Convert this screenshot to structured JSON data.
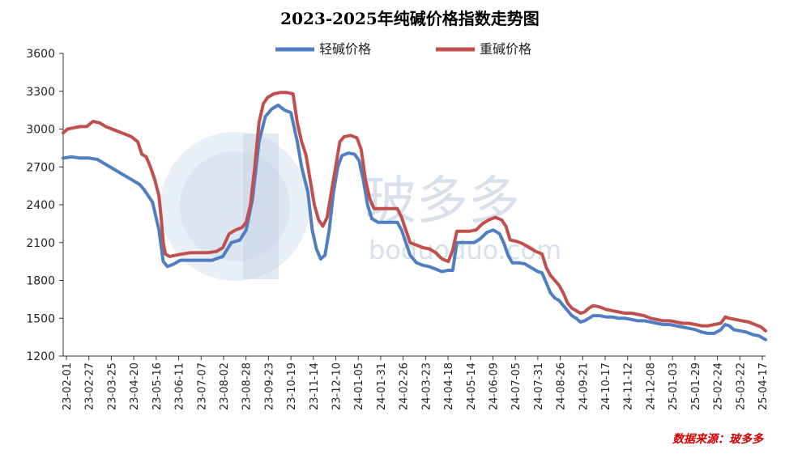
{
  "chart_data": {
    "type": "line",
    "title": "2023-2025年纯碱价格指数走势图",
    "source": "数据来源：玻多多",
    "watermark": {
      "brand": "玻多多",
      "site": "boduoduo.com"
    },
    "ylim": [
      1200,
      3600
    ],
    "yticks": [
      "1200",
      "1500",
      "1800",
      "2100",
      "2400",
      "2700",
      "3000",
      "3300",
      "3600"
    ],
    "x_ticks": [
      "23-02-01",
      "23-02-27",
      "23-03-25",
      "23-04-20",
      "23-05-16",
      "23-06-11",
      "23-07-07",
      "23-08-02",
      "23-08-28",
      "23-09-23",
      "23-10-19",
      "23-11-14",
      "23-12-10",
      "24-01-05",
      "24-01-31",
      "24-02-26",
      "24-03-23",
      "24-04-18",
      "24-05-14",
      "24-06-09",
      "24-07-05",
      "24-07-31",
      "24-08-26",
      "24-09-21",
      "24-10-17",
      "24-11-12",
      "24-12-08",
      "25-01-03",
      "25-01-29",
      "25-02-24",
      "25-03-22",
      "25-04-17"
    ],
    "legend_position": "top",
    "grid": false,
    "series": [
      {
        "name": "轻碱价格",
        "color": "#4f7fc2",
        "points": [
          [
            0,
            2770
          ],
          [
            4,
            2780
          ],
          [
            8,
            2770
          ],
          [
            12,
            2770
          ],
          [
            16,
            2760
          ],
          [
            20,
            2720
          ],
          [
            24,
            2680
          ],
          [
            28,
            2640
          ],
          [
            32,
            2600
          ],
          [
            36,
            2560
          ],
          [
            38,
            2520
          ],
          [
            42,
            2420
          ],
          [
            45,
            2200
          ],
          [
            47,
            1950
          ],
          [
            49,
            1910
          ],
          [
            52,
            1930
          ],
          [
            55,
            1960
          ],
          [
            60,
            1960
          ],
          [
            65,
            1960
          ],
          [
            70,
            1960
          ],
          [
            75,
            1990
          ],
          [
            79,
            2100
          ],
          [
            83,
            2120
          ],
          [
            86,
            2200
          ],
          [
            89,
            2450
          ],
          [
            92,
            2900
          ],
          [
            95,
            3100
          ],
          [
            98,
            3160
          ],
          [
            101,
            3190
          ],
          [
            104,
            3150
          ],
          [
            107,
            3130
          ],
          [
            110,
            2900
          ],
          [
            112,
            2700
          ],
          [
            115,
            2500
          ],
          [
            117,
            2200
          ],
          [
            119,
            2050
          ],
          [
            121,
            1970
          ],
          [
            123,
            2000
          ],
          [
            125,
            2200
          ],
          [
            127,
            2500
          ],
          [
            129,
            2700
          ],
          [
            131,
            2790
          ],
          [
            134,
            2810
          ],
          [
            137,
            2800
          ],
          [
            139,
            2750
          ],
          [
            141,
            2600
          ],
          [
            143,
            2400
          ],
          [
            145,
            2290
          ],
          [
            148,
            2260
          ],
          [
            151,
            2260
          ],
          [
            154,
            2260
          ],
          [
            157,
            2260
          ],
          [
            159,
            2200
          ],
          [
            161,
            2100
          ],
          [
            163,
            2000
          ],
          [
            166,
            1940
          ],
          [
            169,
            1920
          ],
          [
            172,
            1910
          ],
          [
            175,
            1890
          ],
          [
            178,
            1870
          ],
          [
            181,
            1880
          ],
          [
            183,
            1880
          ],
          [
            185,
            2100
          ],
          [
            187,
            2100
          ],
          [
            190,
            2100
          ],
          [
            193,
            2100
          ],
          [
            196,
            2130
          ],
          [
            199,
            2180
          ],
          [
            202,
            2200
          ],
          [
            205,
            2170
          ],
          [
            207,
            2100
          ],
          [
            209,
            2000
          ],
          [
            211,
            1940
          ],
          [
            214,
            1940
          ],
          [
            217,
            1930
          ],
          [
            220,
            1900
          ],
          [
            223,
            1870
          ],
          [
            225,
            1860
          ],
          [
            227,
            1780
          ],
          [
            229,
            1700
          ],
          [
            231,
            1660
          ],
          [
            233,
            1640
          ],
          [
            235,
            1600
          ],
          [
            237,
            1560
          ],
          [
            239,
            1520
          ],
          [
            241,
            1500
          ],
          [
            243,
            1470
          ],
          [
            245,
            1480
          ],
          [
            247,
            1500
          ],
          [
            249,
            1520
          ],
          [
            252,
            1520
          ],
          [
            255,
            1510
          ],
          [
            258,
            1510
          ],
          [
            261,
            1500
          ],
          [
            264,
            1500
          ],
          [
            267,
            1490
          ],
          [
            270,
            1480
          ],
          [
            273,
            1480
          ],
          [
            276,
            1470
          ],
          [
            279,
            1460
          ],
          [
            282,
            1450
          ],
          [
            285,
            1450
          ],
          [
            288,
            1440
          ],
          [
            291,
            1430
          ],
          [
            294,
            1420
          ],
          [
            297,
            1410
          ],
          [
            300,
            1390
          ],
          [
            303,
            1380
          ],
          [
            306,
            1380
          ],
          [
            309,
            1410
          ],
          [
            311,
            1450
          ],
          [
            313,
            1440
          ],
          [
            315,
            1410
          ],
          [
            318,
            1400
          ],
          [
            321,
            1390
          ],
          [
            324,
            1370
          ],
          [
            327,
            1360
          ],
          [
            330,
            1330
          ]
        ]
      },
      {
        "name": "重碱价格",
        "color": "#c0504d",
        "points": [
          [
            0,
            2970
          ],
          [
            2,
            3000
          ],
          [
            5,
            3010
          ],
          [
            8,
            3020
          ],
          [
            11,
            3020
          ],
          [
            14,
            3060
          ],
          [
            17,
            3050
          ],
          [
            20,
            3020
          ],
          [
            23,
            3000
          ],
          [
            26,
            2980
          ],
          [
            29,
            2960
          ],
          [
            32,
            2940
          ],
          [
            35,
            2900
          ],
          [
            37,
            2800
          ],
          [
            39,
            2780
          ],
          [
            41,
            2700
          ],
          [
            43,
            2600
          ],
          [
            45,
            2470
          ],
          [
            46,
            2300
          ],
          [
            47,
            2100
          ],
          [
            48,
            2010
          ],
          [
            50,
            1990
          ],
          [
            53,
            2000
          ],
          [
            56,
            2010
          ],
          [
            60,
            2020
          ],
          [
            64,
            2020
          ],
          [
            68,
            2020
          ],
          [
            72,
            2030
          ],
          [
            75,
            2060
          ],
          [
            78,
            2170
          ],
          [
            81,
            2200
          ],
          [
            84,
            2220
          ],
          [
            86,
            2260
          ],
          [
            88,
            2400
          ],
          [
            90,
            2700
          ],
          [
            92,
            3050
          ],
          [
            94,
            3200
          ],
          [
            96,
            3250
          ],
          [
            99,
            3280
          ],
          [
            102,
            3290
          ],
          [
            105,
            3290
          ],
          [
            108,
            3280
          ],
          [
            110,
            3050
          ],
          [
            112,
            2900
          ],
          [
            114,
            2800
          ],
          [
            116,
            2600
          ],
          [
            118,
            2400
          ],
          [
            120,
            2280
          ],
          [
            122,
            2230
          ],
          [
            124,
            2300
          ],
          [
            126,
            2500
          ],
          [
            128,
            2700
          ],
          [
            130,
            2900
          ],
          [
            132,
            2940
          ],
          [
            135,
            2950
          ],
          [
            138,
            2930
          ],
          [
            140,
            2840
          ],
          [
            142,
            2600
          ],
          [
            144,
            2450
          ],
          [
            146,
            2370
          ],
          [
            150,
            2370
          ],
          [
            154,
            2370
          ],
          [
            157,
            2370
          ],
          [
            159,
            2300
          ],
          [
            161,
            2200
          ],
          [
            163,
            2100
          ],
          [
            166,
            2080
          ],
          [
            169,
            2060
          ],
          [
            172,
            2050
          ],
          [
            175,
            2020
          ],
          [
            178,
            1970
          ],
          [
            181,
            1950
          ],
          [
            183,
            2040
          ],
          [
            185,
            2190
          ],
          [
            188,
            2190
          ],
          [
            191,
            2190
          ],
          [
            194,
            2200
          ],
          [
            197,
            2250
          ],
          [
            200,
            2280
          ],
          [
            203,
            2300
          ],
          [
            206,
            2280
          ],
          [
            208,
            2230
          ],
          [
            210,
            2120
          ],
          [
            213,
            2110
          ],
          [
            216,
            2090
          ],
          [
            219,
            2060
          ],
          [
            222,
            2030
          ],
          [
            225,
            2010
          ],
          [
            227,
            1900
          ],
          [
            229,
            1840
          ],
          [
            231,
            1800
          ],
          [
            233,
            1760
          ],
          [
            235,
            1700
          ],
          [
            237,
            1620
          ],
          [
            239,
            1580
          ],
          [
            241,
            1560
          ],
          [
            243,
            1540
          ],
          [
            245,
            1550
          ],
          [
            247,
            1580
          ],
          [
            249,
            1600
          ],
          [
            252,
            1590
          ],
          [
            255,
            1570
          ],
          [
            258,
            1560
          ],
          [
            261,
            1550
          ],
          [
            264,
            1540
          ],
          [
            267,
            1540
          ],
          [
            270,
            1530
          ],
          [
            273,
            1520
          ],
          [
            276,
            1500
          ],
          [
            279,
            1490
          ],
          [
            282,
            1480
          ],
          [
            285,
            1480
          ],
          [
            288,
            1470
          ],
          [
            291,
            1460
          ],
          [
            294,
            1460
          ],
          [
            297,
            1450
          ],
          [
            300,
            1440
          ],
          [
            303,
            1440
          ],
          [
            306,
            1450
          ],
          [
            309,
            1460
          ],
          [
            311,
            1510
          ],
          [
            313,
            1500
          ],
          [
            316,
            1490
          ],
          [
            319,
            1480
          ],
          [
            322,
            1470
          ],
          [
            325,
            1450
          ],
          [
            328,
            1430
          ],
          [
            330,
            1400
          ]
        ]
      }
    ]
  }
}
